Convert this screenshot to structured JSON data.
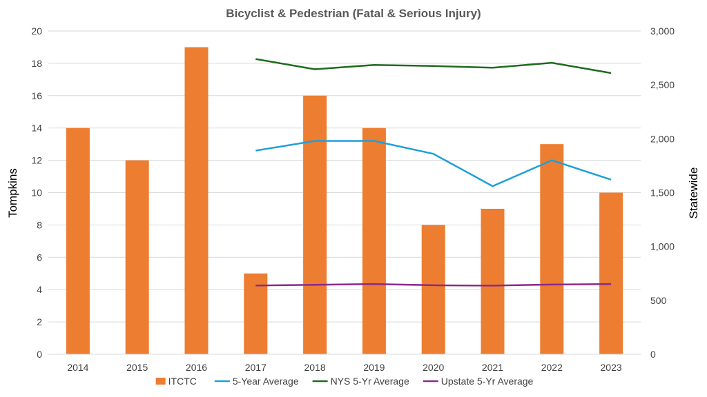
{
  "chart_data": {
    "type": "bar",
    "title": "Bicyclist & Pedestrian (Fatal & Serious Injury)",
    "xlabel": "",
    "ylabel": "Tompkins",
    "ylabel_right": "Statewide",
    "categories": [
      "2014",
      "2015",
      "2016",
      "2017",
      "2018",
      "2019",
      "2020",
      "2021",
      "2022",
      "2023"
    ],
    "ylim": [
      0,
      20
    ],
    "yticks": [
      0,
      2,
      4,
      6,
      8,
      10,
      12,
      14,
      16,
      18,
      20
    ],
    "ylim_right": [
      0,
      3000
    ],
    "yticks_right": [
      "0",
      "500",
      "1,000",
      "1,500",
      "2,000",
      "2,500",
      "3,000"
    ],
    "grid": true,
    "legend": "bottom",
    "series": [
      {
        "name": "ITCTC",
        "type": "bar",
        "axis": "left",
        "color": "#ED7D31",
        "values": [
          14,
          12,
          19,
          5,
          16,
          14,
          8,
          9,
          13,
          10
        ]
      },
      {
        "name": "5-Year Average",
        "type": "line",
        "axis": "left",
        "color": "#1F9FD8",
        "values": [
          null,
          null,
          null,
          12.6,
          13.2,
          13.2,
          12.4,
          10.4,
          12.0,
          10.8
        ]
      },
      {
        "name": "NYS 5-Yr Average",
        "type": "line",
        "axis": "right",
        "color": "#1E6B1E",
        "values": [
          null,
          null,
          null,
          2740,
          2645,
          2685,
          2675,
          2660,
          2705,
          2610
        ]
      },
      {
        "name": "Upstate 5-Yr Average",
        "type": "line",
        "axis": "right",
        "color": "#8B2A8B",
        "values": [
          null,
          null,
          null,
          638,
          645,
          652,
          640,
          637,
          647,
          652
        ]
      }
    ]
  }
}
